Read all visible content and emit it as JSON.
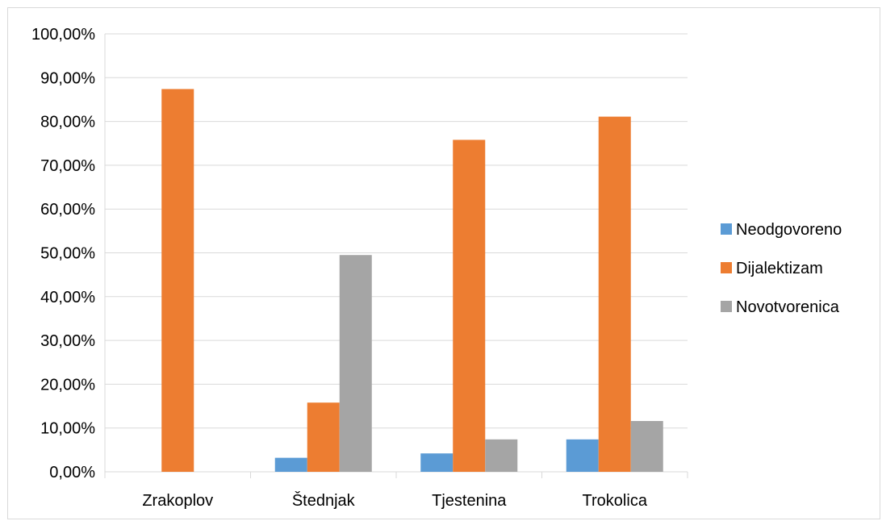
{
  "chart_data": {
    "type": "bar",
    "title": "",
    "xlabel": "",
    "ylabel": "",
    "categories": [
      "Zrakoplov",
      "Štednjak",
      "Tjestenina",
      "Trokolica"
    ],
    "series": [
      {
        "name": "Neodgovoreno",
        "color": "#5b9bd5",
        "values": [
          0.0,
          3.2,
          4.2,
          7.4
        ]
      },
      {
        "name": "Dijalektizam",
        "color": "#ed7d31",
        "values": [
          87.4,
          15.8,
          75.8,
          81.1
        ]
      },
      {
        "name": "Novotvorenica",
        "color": "#a5a5a5",
        "values": [
          0.0,
          49.5,
          7.4,
          11.6
        ]
      }
    ],
    "ylim": [
      0,
      100
    ],
    "yticks": [
      "0,00%",
      "10,00%",
      "20,00%",
      "30,00%",
      "40,00%",
      "50,00%",
      "60,00%",
      "70,00%",
      "80,00%",
      "90,00%",
      "100,00%"
    ],
    "grid": true,
    "legend_position": "right"
  }
}
